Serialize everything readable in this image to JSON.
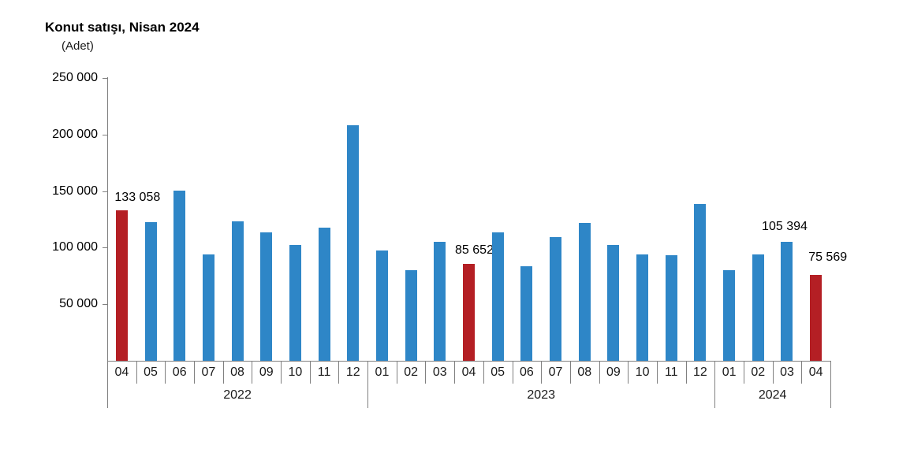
{
  "title": "Konut satışı, Nisan 2024",
  "subtitle": "(Adet)",
  "colors": {
    "bar_default": "#2E86C7",
    "bar_highlight": "#B41F24",
    "axis": "#808080",
    "text": "#000000"
  },
  "chart_data": {
    "type": "bar",
    "title": "Konut satışı, Nisan 2024",
    "unit_label": "(Adet)",
    "xlabel": "",
    "ylabel": "Adet",
    "ylim": [
      0,
      250000
    ],
    "ytick_interval": 50000,
    "ytick_values": [
      50000,
      100000,
      150000,
      200000,
      250000
    ],
    "ytick_labels": [
      "50 000",
      "100 000",
      "150 000",
      "200 000",
      "250 000"
    ],
    "grid": false,
    "legend": "none",
    "points": [
      {
        "year": "2022",
        "month": "04",
        "value": 133058,
        "highlight": true,
        "label": "133 058"
      },
      {
        "year": "2022",
        "month": "05",
        "value": 122768,
        "highlight": false
      },
      {
        "year": "2022",
        "month": "06",
        "value": 150509,
        "highlight": false
      },
      {
        "year": "2022",
        "month": "07",
        "value": 93902,
        "highlight": false
      },
      {
        "year": "2022",
        "month": "08",
        "value": 123491,
        "highlight": false
      },
      {
        "year": "2022",
        "month": "09",
        "value": 113402,
        "highlight": false
      },
      {
        "year": "2022",
        "month": "10",
        "value": 102246,
        "highlight": false
      },
      {
        "year": "2022",
        "month": "11",
        "value": 117806,
        "highlight": false
      },
      {
        "year": "2022",
        "month": "12",
        "value": 207963,
        "highlight": false
      },
      {
        "year": "2023",
        "month": "01",
        "value": 97708,
        "highlight": false
      },
      {
        "year": "2023",
        "month": "02",
        "value": 80031,
        "highlight": false
      },
      {
        "year": "2023",
        "month": "03",
        "value": 105476,
        "highlight": false
      },
      {
        "year": "2023",
        "month": "04",
        "value": 85652,
        "highlight": true,
        "label": "85 652"
      },
      {
        "year": "2023",
        "month": "05",
        "value": 113656,
        "highlight": false
      },
      {
        "year": "2023",
        "month": "06",
        "value": 83636,
        "highlight": false
      },
      {
        "year": "2023",
        "month": "07",
        "value": 109548,
        "highlight": false
      },
      {
        "year": "2023",
        "month": "08",
        "value": 122091,
        "highlight": false
      },
      {
        "year": "2023",
        "month": "09",
        "value": 102656,
        "highlight": false
      },
      {
        "year": "2023",
        "month": "10",
        "value": 93761,
        "highlight": false
      },
      {
        "year": "2023",
        "month": "11",
        "value": 93514,
        "highlight": false
      },
      {
        "year": "2023",
        "month": "12",
        "value": 138577,
        "highlight": false
      },
      {
        "year": "2024",
        "month": "01",
        "value": 80308,
        "highlight": false
      },
      {
        "year": "2024",
        "month": "02",
        "value": 93902,
        "highlight": false
      },
      {
        "year": "2024",
        "month": "03",
        "value": 105394,
        "highlight": false,
        "label": "105 394"
      },
      {
        "year": "2024",
        "month": "04",
        "value": 75569,
        "highlight": true,
        "label": "75 569"
      }
    ]
  }
}
